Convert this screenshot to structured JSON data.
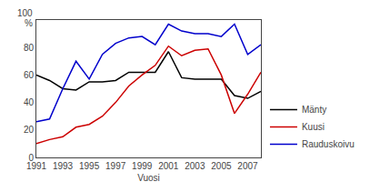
{
  "chart_data": {
    "type": "line",
    "x": [
      1991,
      1992,
      1993,
      1994,
      1995,
      1996,
      1997,
      1998,
      1999,
      2000,
      2001,
      2002,
      2003,
      2004,
      2005,
      2006,
      2007,
      2008
    ],
    "series": [
      {
        "name": "Mänty",
        "color": "#000000",
        "values": [
          60,
          56,
          50,
          49,
          55,
          55,
          56,
          62,
          62,
          62,
          77,
          58,
          57,
          57,
          57,
          45,
          43,
          48
        ]
      },
      {
        "name": "Kuusi",
        "color": "#cc0000",
        "values": [
          10,
          13,
          15,
          22,
          24,
          30,
          40,
          52,
          60,
          67,
          81,
          74,
          78,
          79,
          60,
          32,
          46,
          62
        ]
      },
      {
        "name": "Rauduskoivu",
        "color": "#0000cc",
        "values": [
          26,
          28,
          50,
          70,
          57,
          75,
          83,
          87,
          88,
          82,
          97,
          92,
          90,
          90,
          88,
          97,
          75,
          82
        ]
      }
    ],
    "xlabel": "Vuosi",
    "xlim": [
      1991,
      2008
    ],
    "xticks": [
      1991,
      1993,
      1995,
      1997,
      1999,
      2001,
      2003,
      2005,
      2007
    ],
    "ylim": [
      0,
      100
    ],
    "yticks": [
      0,
      20,
      40,
      60,
      80
    ],
    "grid": false,
    "legend": "lower right",
    "annotations": [
      "100",
      "%"
    ]
  }
}
